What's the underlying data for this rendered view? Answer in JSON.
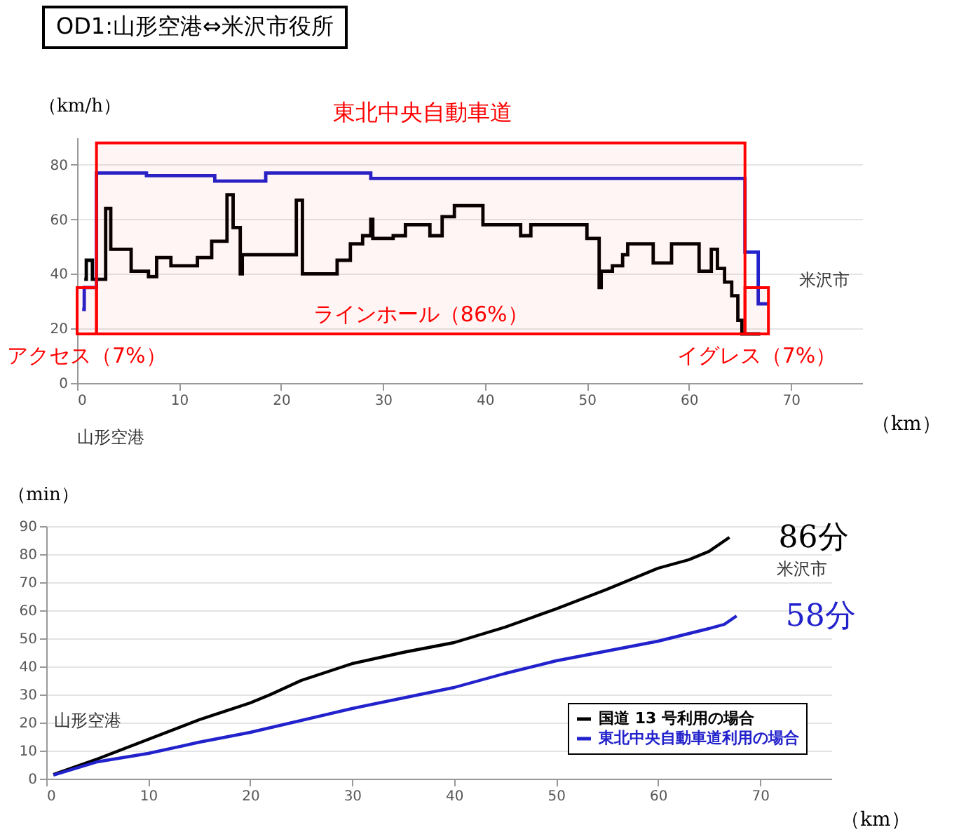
{
  "chart_data": [
    {
      "type": "step",
      "title": "OD1:山形空港⇔米沢市役所",
      "xlabel": "（km）",
      "ylabel": "（km/h）",
      "xlim": [
        0,
        77
      ],
      "xticks": [
        0,
        10,
        20,
        30,
        40,
        50,
        60,
        70
      ],
      "ylim": [
        0,
        90
      ],
      "yticks": [
        0,
        20,
        40,
        60,
        80
      ],
      "grid": "y",
      "series": [
        {
          "color": "#000000",
          "x": [
            0.7,
            0.9,
            1.5,
            2.8,
            3.3,
            5.3,
            7.0,
            7.8,
            9.2,
            11.8,
            13.2,
            14.7,
            15.3,
            16.0,
            16.2,
            21.5,
            22.1,
            25.5,
            26.8,
            28.0,
            28.8,
            29.0,
            31.0,
            32.2,
            34.6,
            35.8,
            37.0,
            39.8,
            43.5,
            44.5,
            50.0,
            51.2,
            51.4,
            52.5,
            53.5,
            54.0,
            56.5,
            58.3,
            61.0,
            62.2,
            62.8,
            63.5,
            64.2,
            64.8,
            65.2,
            67.0
          ],
          "values": [
            38,
            45,
            38,
            64,
            49,
            41,
            39,
            46,
            43,
            46,
            52,
            69,
            57,
            40,
            47,
            67,
            40,
            45,
            51,
            54,
            60,
            53,
            54,
            58,
            54,
            61,
            65,
            58,
            54,
            58,
            53,
            35,
            41,
            43,
            47,
            51,
            44,
            51,
            41,
            49,
            42,
            37,
            32,
            23,
            18,
            18
          ]
        },
        {
          "color": "#2222cc",
          "x": [
            0.5,
            0.7,
            1.9,
            6.8,
            13.5,
            18.5,
            28.8,
            65.5,
            66.8,
            67.8
          ],
          "values": [
            27,
            35,
            77,
            76,
            74,
            77,
            75,
            48,
            29,
            29
          ]
        }
      ],
      "bands": [
        {
          "axis": "x",
          "from": 0,
          "to": 1.9,
          "label": "アクセス（7%）",
          "color": "#ff0000"
        },
        {
          "axis": "x",
          "from": 1.9,
          "to": 65.5,
          "label": "ラインホール（86%）",
          "color": "#ff0000"
        },
        {
          "axis": "x",
          "from": 65.5,
          "to": 67.8,
          "label": "イグレス（7%）",
          "color": "#ff0000"
        }
      ],
      "annotations": [
        "東北中央自動車道",
        "米沢市",
        "山形空港"
      ]
    },
    {
      "type": "line",
      "xlabel": "（km）",
      "ylabel": "（min）",
      "xlim": [
        0,
        77
      ],
      "xticks": [
        0,
        10,
        20,
        30,
        40,
        50,
        60,
        70
      ],
      "ylim": [
        0,
        90
      ],
      "yticks": [
        0,
        10,
        20,
        30,
        40,
        50,
        60,
        70,
        80,
        90
      ],
      "grid": "y",
      "legend": "bottom right",
      "series": [
        {
          "name": "国道 13 号利用の場合",
          "color": "#000000",
          "x": [
            0.7,
            5,
            10,
            15,
            20,
            22,
            25,
            30,
            35,
            40,
            45,
            50,
            55,
            60,
            63,
            65,
            67
          ],
          "values": [
            1.5,
            7,
            14,
            21,
            27,
            30,
            35,
            41,
            45,
            48.5,
            54,
            60.5,
            67.5,
            75,
            78,
            81,
            86
          ]
        },
        {
          "name": "東北中央自動車道利用の場合",
          "color": "#2222cc",
          "x": [
            0.7,
            5,
            10,
            15,
            20,
            30,
            40,
            45,
            50,
            55,
            60,
            65,
            66.5,
            67.7
          ],
          "values": [
            1.3,
            6,
            9,
            13,
            16.5,
            25,
            32.5,
            37.5,
            42,
            45.5,
            49,
            53.5,
            55,
            58
          ]
        }
      ],
      "annotations": [
        {
          "text": "86分",
          "x": 67,
          "y": 86
        },
        {
          "text": "58分",
          "x": 67.7,
          "y": 58
        },
        "米沢市",
        "山形空港"
      ]
    }
  ]
}
